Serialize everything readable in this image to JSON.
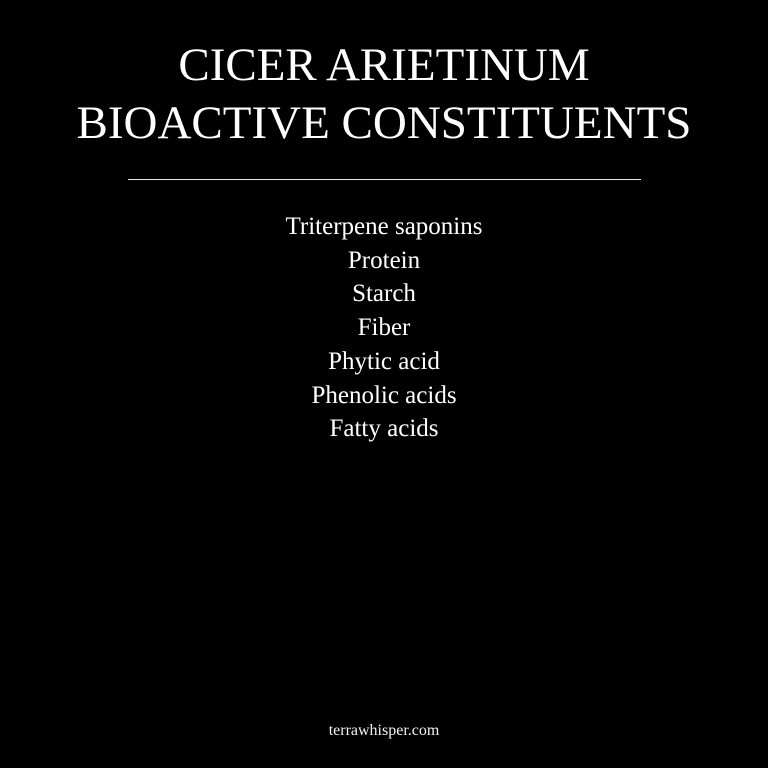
{
  "colors": {
    "background": "#000000",
    "text": "#ffffff",
    "divider": "#e8e8e8"
  },
  "title": {
    "line1": "CICER ARIETINUM",
    "line2": "BIOACTIVE CONSTITUENTS"
  },
  "constituents": [
    "Triterpene saponins",
    "Protein",
    "Starch",
    "Fiber",
    "Phytic acid",
    "Phenolic acids",
    "Fatty acids"
  ],
  "footer": {
    "site": "terrawhisper.com"
  }
}
